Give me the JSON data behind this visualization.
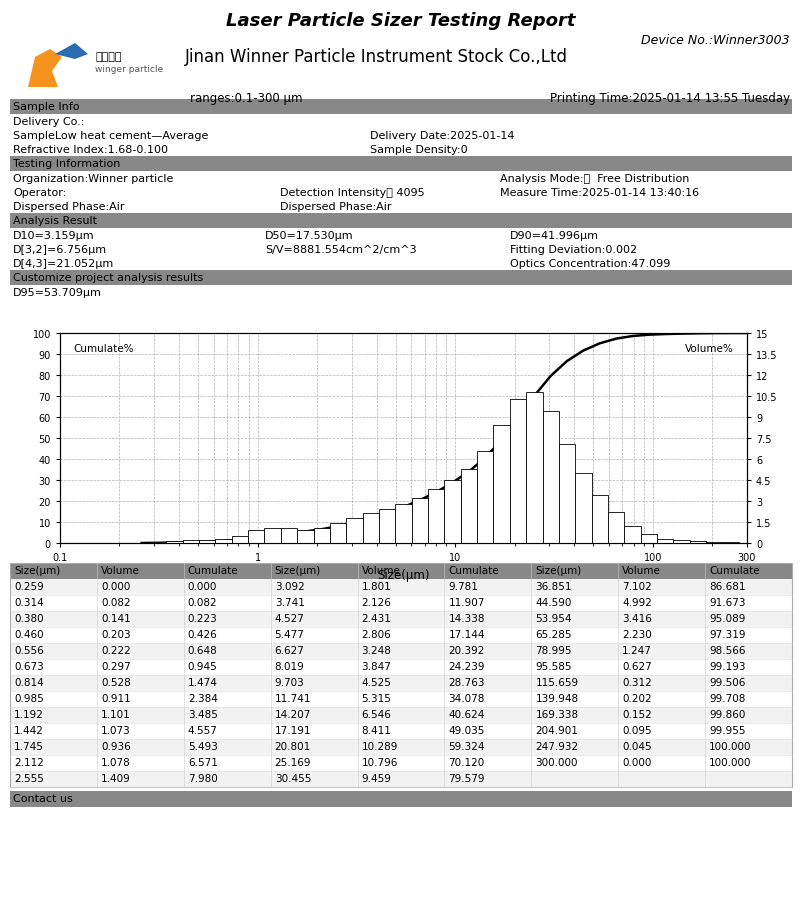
{
  "title": "Laser Particle Sizer Testing Report",
  "device_no": "Device No.:Winner3003",
  "company": "Jinan Winner Particle Instrument Stock Co.,Ltd",
  "ranges": "ranges:0.1-300 μm",
  "printing_time": "Printing Time:2025-01-14 13:55 Tuesday",
  "sample_info_header": "Sample Info",
  "delivery_co": "Delivery Co.:",
  "sample_name": "SampleLow heat cement—Average",
  "delivery_date": "Delivery Date:2025-01-14",
  "refractive_index": "Refractive Index:1.68-0.100",
  "sample_density": "Sample Density:0",
  "testing_info_header": "Testing Information",
  "organization": "Organization:Winner particle",
  "analysis_mode": "Analysis Mode:：  Free Distribution",
  "operator": "Operator:",
  "detection_intensity": "Detection Intensity： 4095",
  "measure_time": "Measure Time:2025-01-14 13:40:16",
  "dispersed_phase1": "Dispersed Phase:Air",
  "dispersed_phase2": "Dispersed Phase:Air",
  "analysis_result_header": "Analysis Result",
  "D10": "D10=3.159μm",
  "D50": "D50=17.530μm",
  "D90": "D90=41.996μm",
  "D32": "D[3,2]=6.756μm",
  "SV": "S/V=8881.554cm^2/cm^3",
  "fitting_dev": "Fitting Deviation:0.002",
  "D43": "D[4,3]=21.052μm",
  "optics_conc": "Optics Concentration:47.099",
  "customize_header": "Customize project analysis results",
  "D95": "D95=53.709μm",
  "xlabel": "Size(μm)",
  "ylabel_left": "Cumulate%",
  "ylabel_right": "Volume%",
  "bar_sizes": [
    0.259,
    0.314,
    0.38,
    0.46,
    0.556,
    0.673,
    0.814,
    0.985,
    1.192,
    1.442,
    1.745,
    2.112,
    2.555,
    3.092,
    3.741,
    4.527,
    5.477,
    6.627,
    8.019,
    9.703,
    11.741,
    14.207,
    17.191,
    20.801,
    25.169,
    30.455,
    36.851,
    44.59,
    53.954,
    65.285,
    78.995,
    95.585,
    115.659,
    139.948,
    169.338,
    204.901,
    247.932,
    300.0
  ],
  "volumes": [
    0.0,
    0.082,
    0.141,
    0.203,
    0.222,
    0.297,
    0.528,
    0.911,
    1.101,
    1.073,
    0.936,
    1.078,
    1.409,
    1.801,
    2.126,
    2.431,
    2.806,
    3.248,
    3.847,
    4.525,
    5.315,
    6.546,
    8.411,
    10.289,
    10.796,
    9.459,
    7.102,
    4.992,
    3.416,
    2.23,
    1.247,
    0.627,
    0.312,
    0.202,
    0.152,
    0.095,
    0.045,
    0.0
  ],
  "cumulates": [
    0.0,
    0.082,
    0.223,
    0.426,
    0.648,
    0.945,
    1.474,
    2.384,
    3.485,
    4.557,
    5.493,
    6.571,
    7.98,
    9.781,
    11.907,
    14.338,
    17.144,
    20.392,
    24.239,
    28.763,
    34.078,
    40.624,
    49.035,
    59.324,
    70.12,
    79.579,
    86.681,
    91.673,
    95.089,
    97.319,
    98.566,
    99.193,
    99.506,
    99.708,
    99.86,
    99.955,
    100.0,
    100.0
  ],
  "table_headers": [
    "Size(μm)",
    "Volume",
    "Cumulate",
    "Size(μm)",
    "Volume",
    "Cumulate",
    "Size(μm)",
    "Volume",
    "Cumulate"
  ],
  "table_data": [
    [
      0.259,
      0.0,
      0.0,
      3.092,
      1.801,
      9.781,
      36.851,
      7.102,
      86.681
    ],
    [
      0.314,
      0.082,
      0.082,
      3.741,
      2.126,
      11.907,
      44.59,
      4.992,
      91.673
    ],
    [
      0.38,
      0.141,
      0.223,
      4.527,
      2.431,
      14.338,
      53.954,
      3.416,
      95.089
    ],
    [
      0.46,
      0.203,
      0.426,
      5.477,
      2.806,
      17.144,
      65.285,
      2.23,
      97.319
    ],
    [
      0.556,
      0.222,
      0.648,
      6.627,
      3.248,
      20.392,
      78.995,
      1.247,
      98.566
    ],
    [
      0.673,
      0.297,
      0.945,
      8.019,
      3.847,
      24.239,
      95.585,
      0.627,
      99.193
    ],
    [
      0.814,
      0.528,
      1.474,
      9.703,
      4.525,
      28.763,
      115.659,
      0.312,
      99.506
    ],
    [
      0.985,
      0.911,
      2.384,
      11.741,
      5.315,
      34.078,
      139.948,
      0.202,
      99.708
    ],
    [
      1.192,
      1.101,
      3.485,
      14.207,
      6.546,
      40.624,
      169.338,
      0.152,
      99.86
    ],
    [
      1.442,
      1.073,
      4.557,
      17.191,
      8.411,
      49.035,
      204.901,
      0.095,
      99.955
    ],
    [
      1.745,
      0.936,
      5.493,
      20.801,
      10.289,
      59.324,
      247.932,
      0.045,
      100.0
    ],
    [
      2.112,
      1.078,
      6.571,
      25.169,
      10.796,
      70.12,
      300.0,
      0.0,
      100.0
    ],
    [
      2.555,
      1.409,
      7.98,
      30.455,
      9.459,
      79.579,
      null,
      null,
      null
    ]
  ],
  "contact": "Contact us",
  "fig_bg": "#ffffff",
  "section_bg": "#888888"
}
